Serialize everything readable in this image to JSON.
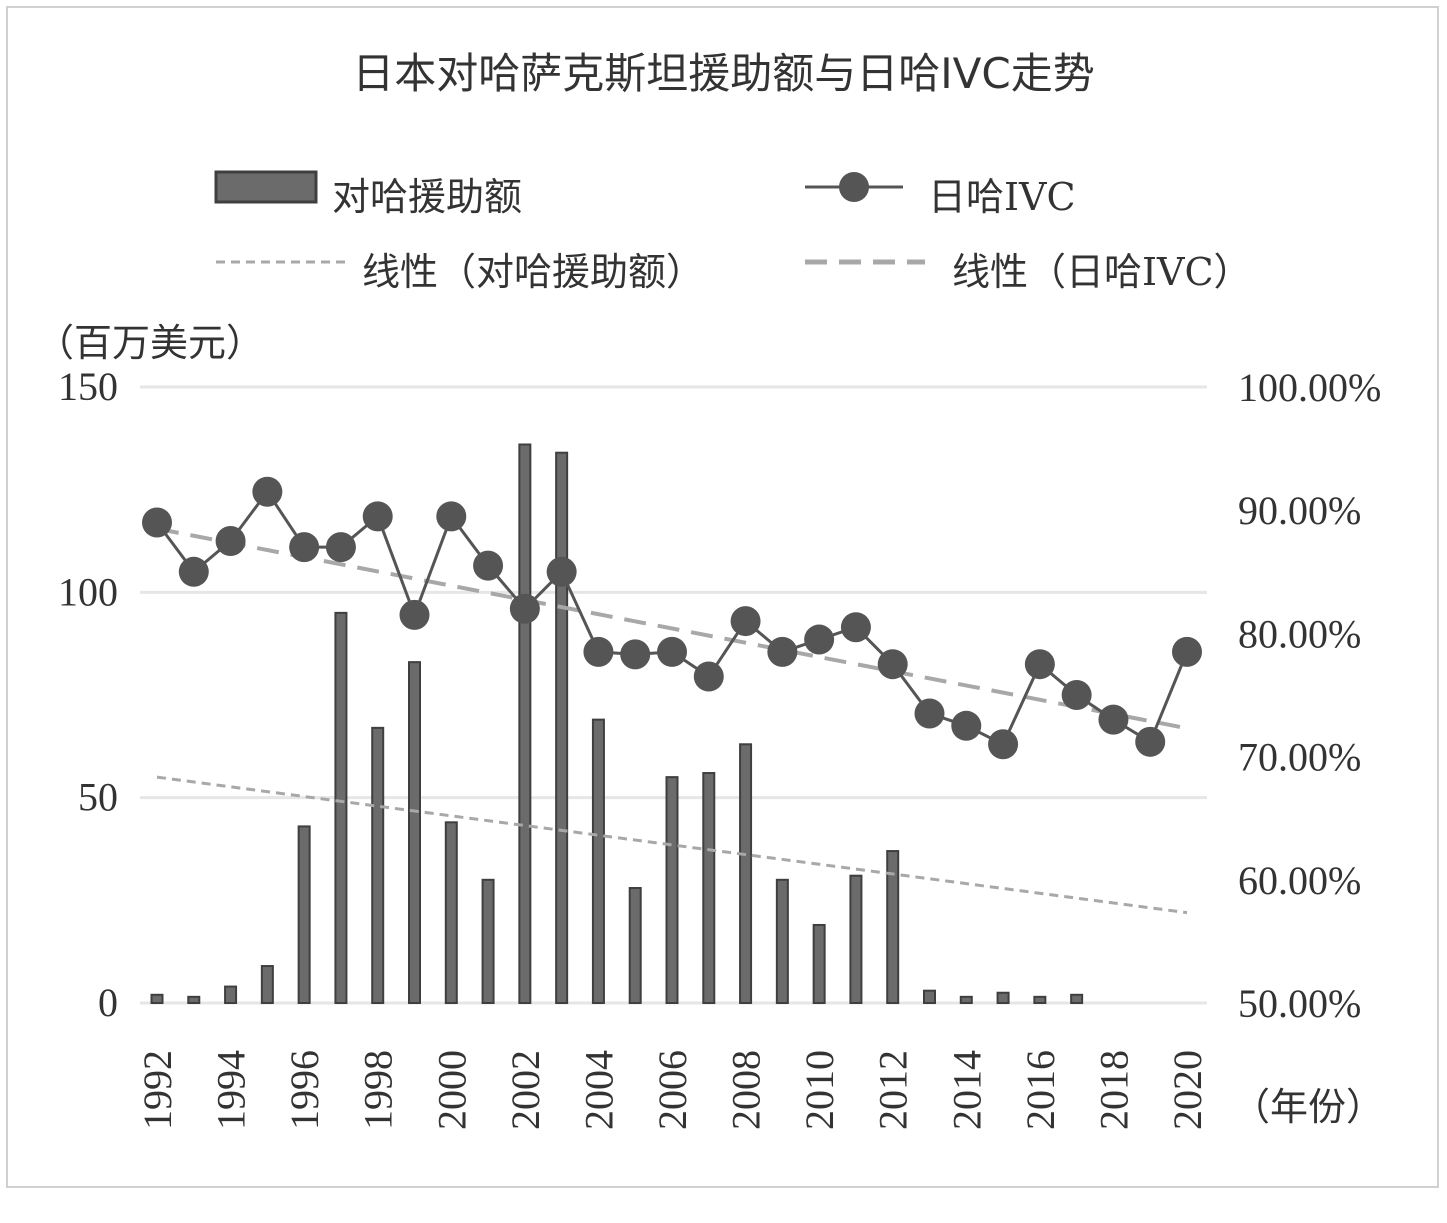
{
  "chart_data": {
    "type": "bar+line",
    "title": "日本对哈萨克斯坦援助额与日哈IVC走势",
    "left_unit": "（百万美元）",
    "x_unit": "（年份）",
    "x": [
      1992,
      1993,
      1994,
      1995,
      1996,
      1997,
      1998,
      1999,
      2000,
      2001,
      2002,
      2003,
      2004,
      2005,
      2006,
      2007,
      2008,
      2009,
      2010,
      2011,
      2012,
      2013,
      2014,
      2015,
      2016,
      2017,
      2018,
      2019,
      2020
    ],
    "x_tick_labels": [
      "1992",
      "1994",
      "1996",
      "1998",
      "2000",
      "2002",
      "2004",
      "2006",
      "2008",
      "2010",
      "2012",
      "2014",
      "2016",
      "2018",
      "2020"
    ],
    "left_axis": {
      "min": 0,
      "max": 150,
      "ticks": [
        "0",
        "50",
        "100",
        "150"
      ]
    },
    "right_axis": {
      "min": 0.5,
      "max": 1.0,
      "ticks": [
        "50.00%",
        "60.00%",
        "70.00%",
        "80.00%",
        "90.00%",
        "100.00%"
      ]
    },
    "series": [
      {
        "name": "对哈援助额",
        "type": "bar",
        "axis": "left",
        "values": [
          2,
          1.5,
          4,
          9,
          43,
          95,
          67,
          83,
          44,
          30,
          136,
          134,
          69,
          28,
          55,
          56,
          63,
          30,
          19,
          31,
          37,
          3,
          1.5,
          2.5,
          1.5,
          2,
          null,
          null,
          null
        ]
      },
      {
        "name": "日哈IVC",
        "type": "line",
        "axis": "right",
        "values": [
          0.89,
          0.85,
          0.875,
          0.915,
          0.87,
          0.87,
          0.895,
          0.815,
          0.895,
          0.855,
          0.82,
          0.85,
          0.785,
          0.783,
          0.785,
          0.765,
          0.81,
          0.785,
          0.795,
          0.805,
          0.775,
          0.735,
          0.725,
          0.71,
          0.775,
          0.75,
          0.73,
          0.712,
          0.785
        ]
      },
      {
        "name": "线性（对哈援助额）",
        "type": "trend",
        "axis": "left",
        "of": "对哈援助额",
        "start": 55,
        "end": 22
      },
      {
        "name": "线性（日哈IVC）",
        "type": "trend",
        "axis": "right",
        "of": "日哈IVC",
        "start": 0.885,
        "end": 0.723
      }
    ],
    "grid": true,
    "legend_position": "top",
    "colors": {
      "bar": "#6b6b6b",
      "bar_edge": "#3f3f3f",
      "line": "#555555",
      "trend": "#a8a8a8",
      "grid": "#e6e6e6",
      "text": "#333333"
    }
  }
}
